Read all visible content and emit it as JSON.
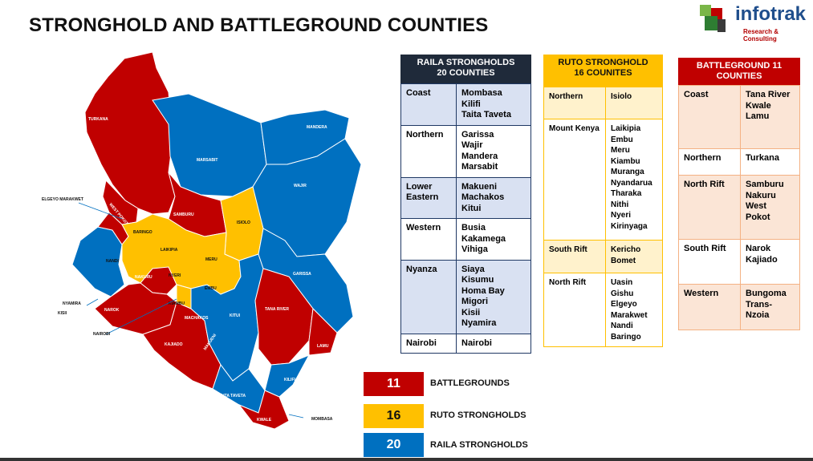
{
  "title": "STRONGHOLD AND BATTLEGROUND COUNTIES",
  "logo": {
    "name": "infotrak",
    "tagline": "Research & Consulting"
  },
  "colors": {
    "red": "#c00000",
    "blue": "#0070c0",
    "yellow": "#ffc000"
  },
  "map": {
    "labels": {
      "turkana": "TURKANA",
      "marsabit": "MARSABIT",
      "mandera": "MANDERA",
      "wajir": "WAJIR",
      "samburu": "SAMBURU",
      "isiolo": "ISIOLO",
      "west_pokot": "WEST POKOT",
      "baringo": "BARINGO",
      "laikipia": "LAIKIPIA",
      "meru": "MERU",
      "nandi": "NANDI",
      "nakuru": "NAKURU",
      "nyeri": "NYERI",
      "embu": "EMBU",
      "garissa": "GARISSA",
      "narok": "NAROK",
      "kiambu": "KIAMBU",
      "machakos": "MACHAKOS",
      "kitui": "KITUI",
      "tana_river": "TANA RIVER",
      "kajiado": "KAJIADO",
      "makueni": "MAKUENI",
      "lamu": "LAMU",
      "taita_taveta": "TAITA TAVETA",
      "kilifi": "KILIFI",
      "kwale": "KWALE"
    },
    "callouts": {
      "elgeyo": "ELGEYO MARAKWET",
      "nyamira": "NYAMIRA",
      "kisii": "KISII",
      "nairobi": "NAIROBI",
      "mombasa": "MOMBASA"
    }
  },
  "raila": {
    "header": [
      "RAILA STRONGHOLDS",
      "20 COUNTIES"
    ],
    "rows": [
      {
        "region": "Coast",
        "counties": [
          "Mombasa",
          "Kilifi",
          "Taita Taveta"
        ]
      },
      {
        "region": "Northern",
        "counties": [
          "Garissa",
          "Wajir",
          "Mandera",
          "Marsabit"
        ]
      },
      {
        "region": "Lower Eastern",
        "counties": [
          "Makueni",
          "Machakos",
          "Kitui"
        ]
      },
      {
        "region": "Western",
        "counties": [
          "Busia",
          "Kakamega",
          "Vihiga"
        ]
      },
      {
        "region": "Nyanza",
        "counties": [
          "Siaya",
          "Kisumu",
          "Homa Bay",
          "Migori",
          "Kisii",
          "Nyamira"
        ]
      },
      {
        "region": "Nairobi",
        "counties": [
          "Nairobi"
        ]
      }
    ]
  },
  "ruto": {
    "header": [
      "RUTO STRONGHOLD",
      "16 COUNITES"
    ],
    "rows": [
      {
        "region": "Northern",
        "counties": [
          "Isiolo"
        ]
      },
      {
        "region": "Mount Kenya",
        "counties": [
          "Laikipia",
          "Embu",
          "Meru",
          "Kiambu",
          "Muranga",
          "Nyandarua",
          "Tharaka",
          "Nithi",
          "Nyeri",
          "Kirinyaga"
        ]
      },
      {
        "region": "South Rift",
        "counties": [
          "Kericho",
          "Bomet"
        ]
      },
      {
        "region": "North Rift",
        "counties": [
          "Uasin Gishu",
          "Elgeyo",
          "Marakwet",
          "Nandi",
          "Baringo"
        ]
      }
    ]
  },
  "battle": {
    "header": [
      "BATTLEGROUND 11",
      "COUNTIES"
    ],
    "rows": [
      {
        "region": "Coast",
        "counties": [
          "Tana River",
          "Kwale",
          "Lamu"
        ]
      },
      {
        "region": "Northern",
        "counties": [
          "Turkana"
        ]
      },
      {
        "region": "North Rift",
        "counties": [
          "Samburu",
          "Nakuru",
          "West",
          "Pokot"
        ]
      },
      {
        "region": "South Rift",
        "counties": [
          "Narok",
          "Kajiado"
        ]
      },
      {
        "region": "Western",
        "counties": [
          "Bungoma",
          "Trans-",
          "Nzoia"
        ]
      }
    ]
  },
  "legend": [
    {
      "value": "11",
      "label": "BATTLEGROUNDS",
      "color": "#c00000"
    },
    {
      "value": "16",
      "label": "RUTO STRONGHOLDS",
      "color": "#ffc000"
    },
    {
      "value": "20",
      "label": "RAILA STRONGHOLDS",
      "color": "#0070c0"
    }
  ]
}
